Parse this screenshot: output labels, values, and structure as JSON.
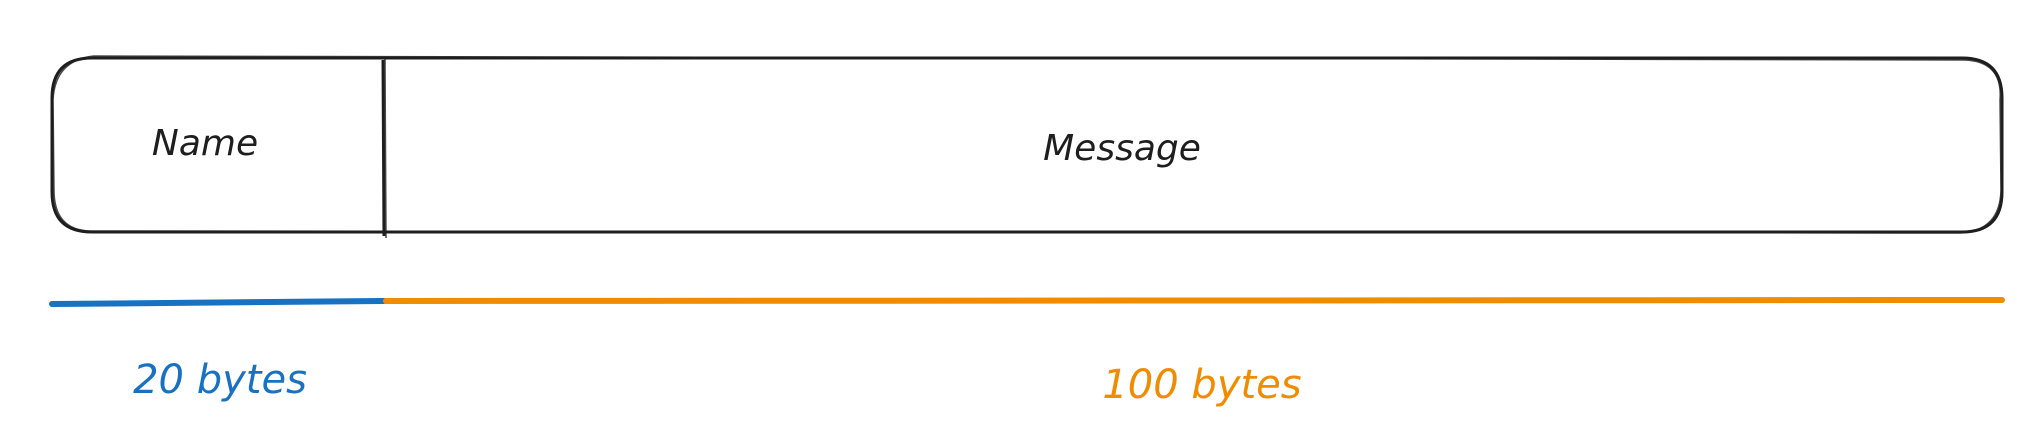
{
  "fields": [
    {
      "name": "Name",
      "size_label": "20 bytes",
      "bytes": 20
    },
    {
      "name": "Message",
      "size_label": "100 bytes",
      "bytes": 100
    }
  ],
  "colors": {
    "outline": "#1e1e1e",
    "name_size": "#1971c2",
    "message_size": "#f08c00",
    "background": "#ffffff"
  }
}
